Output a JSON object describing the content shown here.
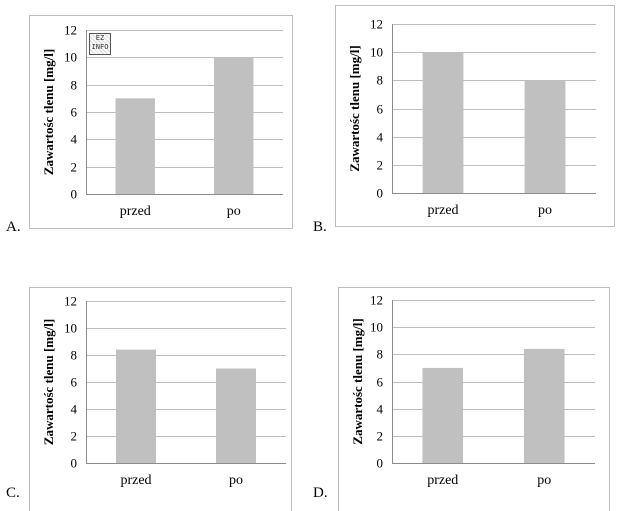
{
  "options": [
    {
      "letter": "A.",
      "stamp": "EZ INFO"
    },
    {
      "letter": "B."
    },
    {
      "letter": "C."
    },
    {
      "letter": "D."
    }
  ],
  "chart_data": [
    {
      "type": "bar",
      "categories": [
        "przed",
        "po"
      ],
      "values": [
        7,
        10
      ],
      "ylabel": "Zawartośc tlenu [mg/l]",
      "ylim": [
        0,
        12
      ],
      "yticks": [
        0,
        2,
        4,
        6,
        8,
        10,
        12
      ],
      "grid": true,
      "bar_color": "#c0c0c0"
    },
    {
      "type": "bar",
      "categories": [
        "przed",
        "po"
      ],
      "values": [
        10,
        8
      ],
      "ylabel": "Zawartośc tlenu [mg/l]",
      "ylim": [
        0,
        12
      ],
      "yticks": [
        0,
        2,
        4,
        6,
        8,
        10,
        12
      ],
      "grid": true,
      "bar_color": "#c0c0c0"
    },
    {
      "type": "bar",
      "categories": [
        "przed",
        "po"
      ],
      "values": [
        8.4,
        7
      ],
      "ylabel": "Zawartośc tlenu [mg/l]",
      "ylim": [
        0,
        12
      ],
      "yticks": [
        0,
        2,
        4,
        6,
        8,
        10,
        12
      ],
      "grid": true,
      "bar_color": "#c0c0c0"
    },
    {
      "type": "bar",
      "categories": [
        "przed",
        "po"
      ],
      "values": [
        7,
        8.4
      ],
      "ylabel": "Zawartośc tlenu [mg/l]",
      "ylim": [
        0,
        12
      ],
      "yticks": [
        0,
        2,
        4,
        6,
        8,
        10,
        12
      ],
      "grid": true,
      "bar_color": "#c0c0c0"
    }
  ]
}
